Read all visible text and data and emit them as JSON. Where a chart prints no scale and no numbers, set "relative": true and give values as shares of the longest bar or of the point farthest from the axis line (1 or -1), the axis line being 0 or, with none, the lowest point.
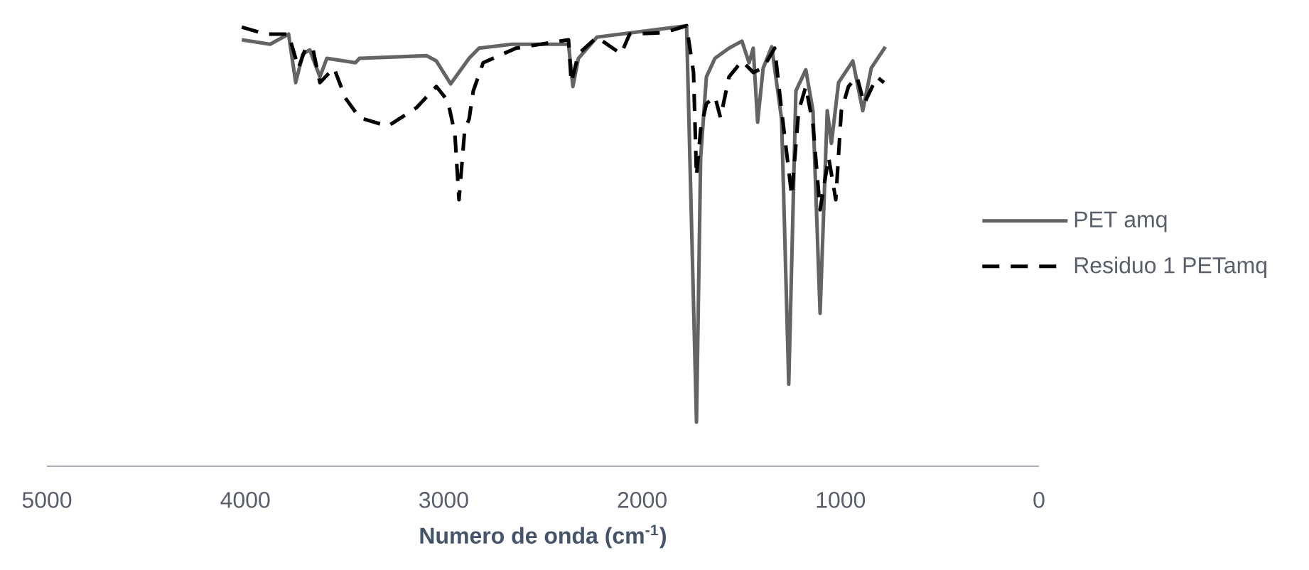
{
  "chart_data": {
    "type": "line",
    "xlabel": "Numero de onda (cm$^{-1}$)",
    "relative": true,
    "xlim": [
      5000,
      0
    ],
    "xticks": [
      5000,
      4000,
      3000,
      2000,
      1000,
      0
    ],
    "legend": "right",
    "marker": "none",
    "series": [
      {
        "name": "PET amq",
        "color": "#646464",
        "line_style": "solid",
        "x": [
          4018,
          3875,
          3782,
          3746,
          3710,
          3675,
          3624,
          3589,
          3445,
          3424,
          3087,
          3037,
          2965,
          2872,
          2822,
          2657,
          2371,
          2349,
          2321,
          2228,
          1776,
          1726,
          1705,
          1676,
          1633,
          1562,
          1497,
          1461,
          1440,
          1418,
          1390,
          1347,
          1297,
          1261,
          1225,
          1175,
          1139,
          1103,
          1067,
          1046,
          1010,
          938,
          888,
          845,
          774
        ],
        "values": [
          0.968,
          0.958,
          0.981,
          0.871,
          0.936,
          0.945,
          0.884,
          0.926,
          0.916,
          0.926,
          0.932,
          0.92,
          0.868,
          0.926,
          0.949,
          0.958,
          0.958,
          0.862,
          0.926,
          0.974,
          1.0,
          0.1,
          0.701,
          0.884,
          0.926,
          0.949,
          0.965,
          0.916,
          0.949,
          0.781,
          0.904,
          0.952,
          0.788,
          0.186,
          0.852,
          0.9,
          0.807,
          0.347,
          0.807,
          0.733,
          0.871,
          0.92,
          0.807,
          0.904,
          0.952
        ]
      },
      {
        "name": "Residuo 1 PETamq",
        "color": "#000000",
        "line_style": "dashed",
        "x": [
          4018,
          3897,
          3782,
          3732,
          3696,
          3660,
          3624,
          3553,
          3496,
          3424,
          3281,
          3137,
          3037,
          2980,
          2944,
          2923,
          2894,
          2872,
          2851,
          2801,
          2636,
          2371,
          2357,
          2321,
          2228,
          2106,
          2063,
          1891,
          1776,
          1741,
          1726,
          1705,
          1676,
          1633,
          1605,
          1562,
          1497,
          1440,
          1390,
          1332,
          1297,
          1246,
          1211,
          1175,
          1139,
          1103,
          1060,
          1024,
          996,
          960,
          917,
          881,
          817,
          781
        ],
        "values": [
          0.997,
          0.981,
          0.981,
          0.904,
          0.949,
          0.949,
          0.871,
          0.904,
          0.836,
          0.791,
          0.772,
          0.814,
          0.862,
          0.83,
          0.756,
          0.605,
          0.765,
          0.788,
          0.852,
          0.916,
          0.949,
          0.968,
          0.871,
          0.936,
          0.974,
          0.936,
          0.981,
          0.984,
          1.0,
          0.894,
          0.659,
          0.765,
          0.823,
          0.839,
          0.791,
          0.884,
          0.92,
          0.894,
          0.904,
          0.949,
          0.807,
          0.614,
          0.807,
          0.862,
          0.775,
          0.582,
          0.701,
          0.605,
          0.807,
          0.862,
          0.884,
          0.823,
          0.884,
          0.871
        ]
      }
    ]
  }
}
